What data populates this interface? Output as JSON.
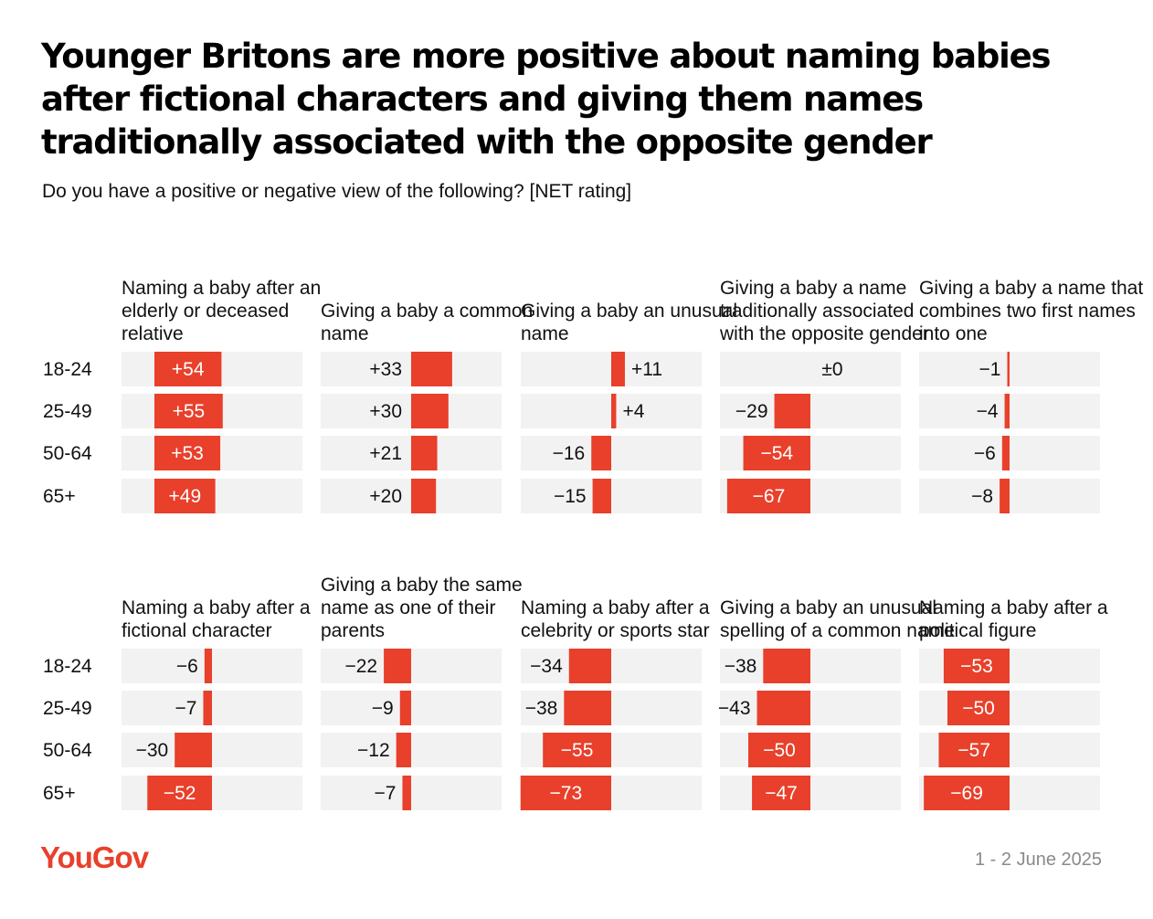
{
  "title": "Younger Britons are more positive about naming babies after fictional characters and giving them names traditionally associated with the opposite gender",
  "subtitle": "Do you have a positive or negative view of the following? [NET rating]",
  "logo": "YouGov",
  "date": "1 - 2 June 2025",
  "colors": {
    "bar": "#e8402b",
    "track": "#f2f2f2",
    "label_dark": "#111111",
    "label_light": "#ffffff"
  },
  "chart_data": [
    {
      "type": "bar",
      "categories": [
        "18-24",
        "25-49",
        "50-64",
        "65+"
      ],
      "panels": [
        {
          "title": "Naming a baby after an elderly or deceased relative",
          "values": [
            54,
            55,
            53,
            49
          ],
          "labels": [
            "+54",
            "+55",
            "+53",
            "+49"
          ]
        },
        {
          "title": "Giving a baby a common name",
          "values": [
            33,
            30,
            21,
            20
          ],
          "labels": [
            "+33",
            "+30",
            "+21",
            "+20"
          ]
        },
        {
          "title": "Giving a baby an unusual name",
          "values": [
            11,
            4,
            -16,
            -15
          ],
          "labels": [
            "+11",
            "+4",
            "−16",
            "−15"
          ]
        },
        {
          "title": "Giving a baby a name traditionally associated with the opposite gender",
          "values": [
            0,
            -29,
            -54,
            -67
          ],
          "labels": [
            "±0",
            "−29",
            "−54",
            "−67"
          ]
        },
        {
          "title": "Giving a baby a name that combines two first names into one",
          "values": [
            -1,
            -4,
            -6,
            -8
          ],
          "labels": [
            "−1",
            "−4",
            "−6",
            "−8"
          ]
        }
      ]
    },
    {
      "type": "bar",
      "categories": [
        "18-24",
        "25-49",
        "50-64",
        "65+"
      ],
      "panels": [
        {
          "title": "Naming a baby after a fictional character",
          "values": [
            -6,
            -7,
            -30,
            -52
          ],
          "labels": [
            "−6",
            "−7",
            "−30",
            "−52"
          ]
        },
        {
          "title": "Giving a baby the same name as one of their parents",
          "values": [
            -22,
            -9,
            -12,
            -7
          ],
          "labels": [
            "−22",
            "−9",
            "−12",
            "−7"
          ]
        },
        {
          "title": "Naming a baby after a celebrity or sports star",
          "values": [
            -34,
            -38,
            -55,
            -73
          ],
          "labels": [
            "−34",
            "−38",
            "−55",
            "−73"
          ]
        },
        {
          "title": "Giving a baby an unusual spelling of a common name",
          "values": [
            -38,
            -43,
            -50,
            -47
          ],
          "labels": [
            "−38",
            "−43",
            "−50",
            "−47"
          ]
        },
        {
          "title": "Naming a baby after a political figure",
          "values": [
            -53,
            -50,
            -57,
            -69
          ],
          "labels": [
            "−53",
            "−50",
            "−57",
            "−69"
          ]
        }
      ]
    }
  ]
}
